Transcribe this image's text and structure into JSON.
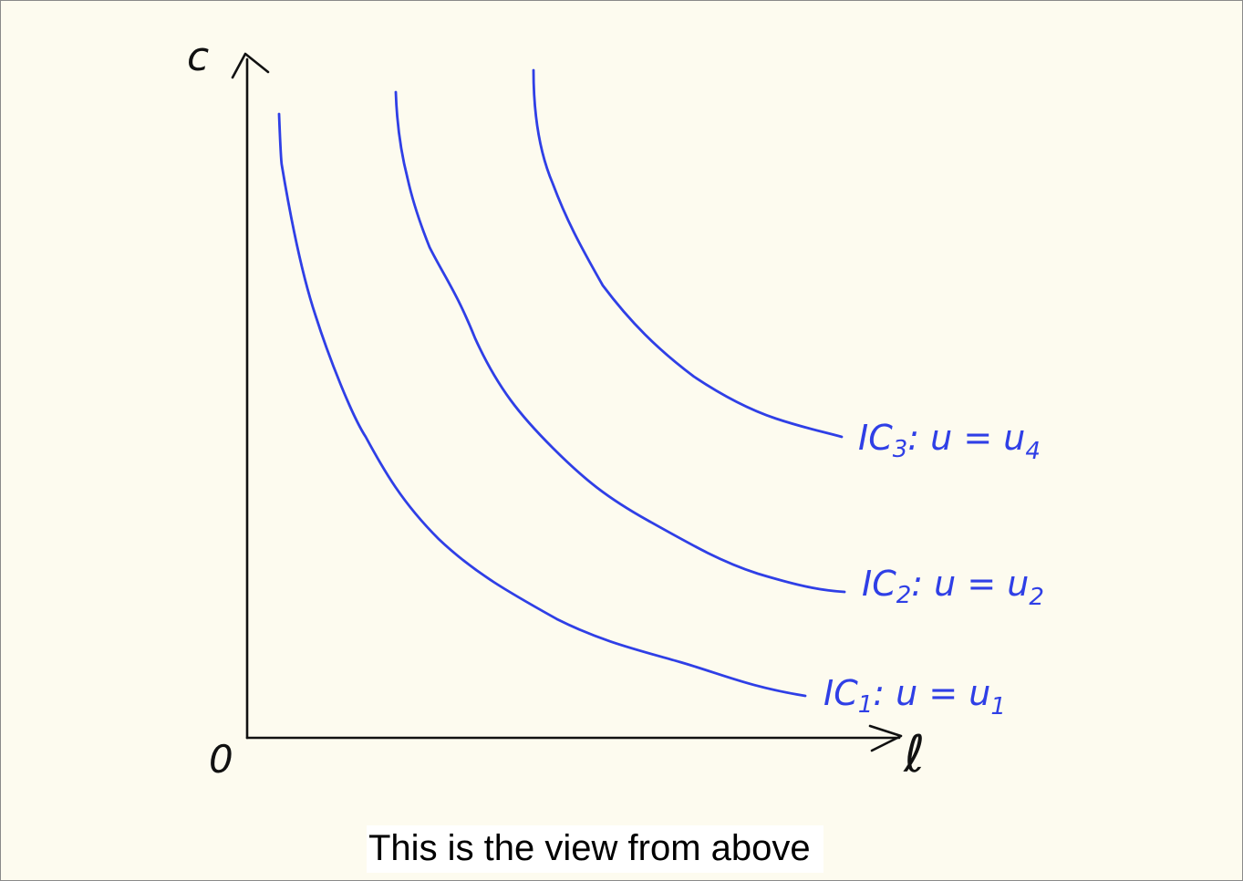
{
  "diagram": {
    "y_axis_label": "c",
    "x_axis_label": "ℓ",
    "origin_label": "0",
    "curves": [
      {
        "label_main": "IC",
        "label_sub": "1",
        "label_rest": ": u = u",
        "label_rest_sub": "1"
      },
      {
        "label_main": "IC",
        "label_sub": "2",
        "label_rest": ": u = u",
        "label_rest_sub": "2"
      },
      {
        "label_main": "IC",
        "label_sub": "3",
        "label_rest": ": u = u",
        "label_rest_sub": "4"
      }
    ],
    "curve_color": "#2f3fe6",
    "axis_color": "#111111"
  },
  "caption": "This is the view from above",
  "background_color": "#fdfbef"
}
